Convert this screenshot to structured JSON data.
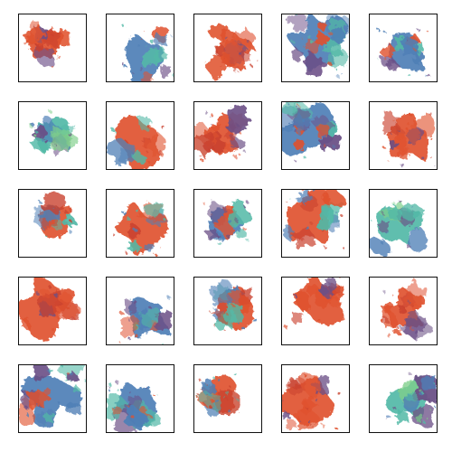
{
  "grid": {
    "rows": 5,
    "cols": 5,
    "tiles": [
      {
        "id": 1,
        "palette": "orange",
        "variant": 1
      },
      {
        "id": 2,
        "palette": "mixed-blue",
        "variant": 2
      },
      {
        "id": 3,
        "palette": "orange",
        "variant": 3
      },
      {
        "id": 4,
        "palette": "mixed-blue",
        "variant": 4
      },
      {
        "id": 5,
        "palette": "blue-dominant",
        "variant": 5
      },
      {
        "id": 6,
        "palette": "teal-green",
        "variant": 6
      },
      {
        "id": 7,
        "palette": "mixed",
        "variant": 7
      },
      {
        "id": 8,
        "palette": "orange",
        "variant": 8
      },
      {
        "id": 9,
        "palette": "blue-dominant",
        "variant": 9
      },
      {
        "id": 10,
        "palette": "orange",
        "variant": 10
      },
      {
        "id": 11,
        "palette": "mixed",
        "variant": 11
      },
      {
        "id": 12,
        "palette": "mixed",
        "variant": 12
      },
      {
        "id": 13,
        "palette": "mixed-blue",
        "variant": 13
      },
      {
        "id": 14,
        "palette": "mixed",
        "variant": 14
      },
      {
        "id": 15,
        "palette": "teal-green",
        "variant": 15
      },
      {
        "id": 16,
        "palette": "orange",
        "variant": 16
      },
      {
        "id": 17,
        "palette": "mixed-blue",
        "variant": 17
      },
      {
        "id": 18,
        "palette": "mixed",
        "variant": 18
      },
      {
        "id": 19,
        "palette": "orange",
        "variant": 19
      },
      {
        "id": 20,
        "palette": "orange",
        "variant": 20
      },
      {
        "id": 21,
        "palette": "mixed-blue",
        "variant": 21
      },
      {
        "id": 22,
        "palette": "blue-dominant",
        "variant": 22
      },
      {
        "id": 23,
        "palette": "mixed",
        "variant": 23
      },
      {
        "id": 24,
        "palette": "orange",
        "variant": 24
      },
      {
        "id": 25,
        "palette": "teal-green",
        "variant": 25
      }
    ]
  },
  "colors": {
    "orange": "#e0522f",
    "red": "#c9412e",
    "blue": "#4f7fb6",
    "teal": "#53b9a7",
    "green": "#7fcf8a",
    "purple": "#6b4f86",
    "border": "#111111",
    "background": "#ffffff"
  }
}
